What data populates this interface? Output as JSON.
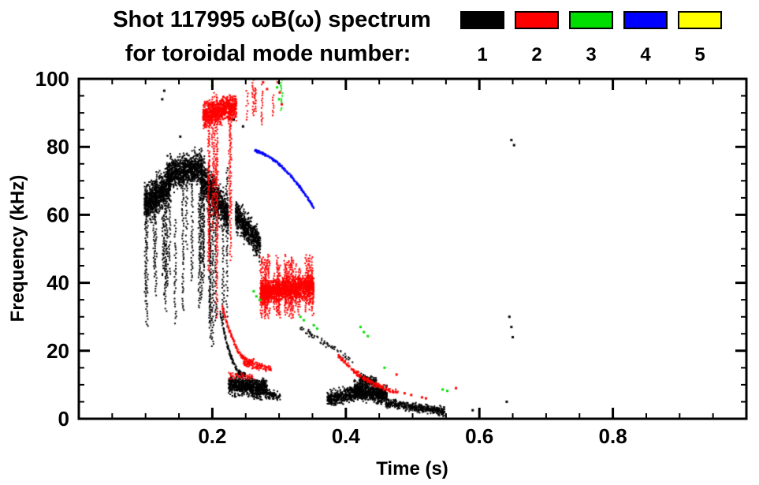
{
  "title": {
    "line1": "Shot 117995 ωB(ω) spectrum",
    "line2": "for toroidal mode number:"
  },
  "legend": {
    "position": "top-right",
    "entries": [
      {
        "label": "1",
        "color": "#000000"
      },
      {
        "label": "2",
        "color": "#ff0000"
      },
      {
        "label": "3",
        "color": "#00dd00"
      },
      {
        "label": "4",
        "color": "#0000ff"
      },
      {
        "label": "5",
        "color": "#ffff00"
      }
    ]
  },
  "chart_data": {
    "type": "scatter",
    "title": "Shot 117995 ωB(ω) spectrum for toroidal mode number: 1-5",
    "xlabel": "Time (s)",
    "ylabel": "Frequency (kHz)",
    "xlim": [
      0.0,
      1.0
    ],
    "ylim": [
      0,
      100
    ],
    "xticks": [
      0.2,
      0.4,
      0.6,
      0.8
    ],
    "yticks": [
      0,
      20,
      40,
      60,
      80,
      100
    ],
    "x_minor_step": 0.05,
    "y_minor_step": 5,
    "grid": false,
    "legend_position": "top-right",
    "series": [
      {
        "name": "n=1",
        "mode": 1,
        "color": "#000000",
        "clusters": [
          {
            "type": "blob",
            "t": [
              0.098,
              0.138
            ],
            "f": [
              63,
              69
            ],
            "spread": 7.5,
            "n": 800
          },
          {
            "type": "blob",
            "t": [
              0.132,
              0.185
            ],
            "f": [
              72,
              74
            ],
            "spread": 6.5,
            "n": 900
          },
          {
            "type": "blob",
            "t": [
              0.183,
              0.224
            ],
            "f": [
              71,
              60
            ],
            "spread": 8,
            "n": 700
          },
          {
            "type": "blob",
            "t": [
              0.235,
              0.272
            ],
            "f": [
              60,
              51
            ],
            "spread": 6,
            "n": 600
          },
          {
            "type": "vstreaks",
            "t": [
              0.1,
              0.148
            ],
            "ftop": [
              58,
              72
            ],
            "fbot": [
              24,
              46
            ],
            "k": 10
          },
          {
            "type": "vstreaks",
            "t": [
              0.15,
              0.196
            ],
            "ftop": [
              64,
              78
            ],
            "fbot": [
              30,
              52
            ],
            "k": 8
          },
          {
            "type": "vstreaks",
            "t": [
              0.196,
              0.226
            ],
            "ftop": [
              58,
              74
            ],
            "fbot": [
              21,
              30
            ],
            "k": 6
          },
          {
            "type": "curve",
            "from": [
              0.212,
              31
            ],
            "to": [
              0.249,
              13
            ],
            "bend": -5,
            "jitter": 1.2,
            "n": 130
          },
          {
            "type": "blob",
            "t": [
              0.224,
              0.282
            ],
            "f": [
              10,
              8.5
            ],
            "spread": 4.2,
            "n": 750
          },
          {
            "type": "blob",
            "t": [
              0.282,
              0.302
            ],
            "f": [
              7.5,
              6.5
            ],
            "spread": 2,
            "n": 80
          },
          {
            "type": "blob",
            "t": [
              0.33,
              0.41
            ],
            "f": [
              27,
              17
            ],
            "spread": 1.6,
            "n": 60
          },
          {
            "type": "blob",
            "t": [
              0.372,
              0.425
            ],
            "f": [
              5.5,
              8.5
            ],
            "spread": 3.2,
            "n": 450
          },
          {
            "type": "blob",
            "t": [
              0.412,
              0.462
            ],
            "f": [
              8.5,
              7
            ],
            "spread": 3.8,
            "n": 650
          },
          {
            "type": "blob",
            "t": [
              0.42,
              0.446
            ],
            "f": [
              12,
              10.5
            ],
            "spread": 2,
            "n": 160
          },
          {
            "type": "blob",
            "t": [
              0.46,
              0.548
            ],
            "f": [
              4.5,
              2.2
            ],
            "spread": 1.8,
            "n": 420
          },
          {
            "type": "points",
            "pts": [
              [
                0.125,
                94
              ],
              [
                0.128,
                96.5
              ],
              [
                0.152,
                83
              ],
              [
                0.232,
                88
              ],
              [
                0.246,
                86
              ],
              [
                0.59,
                2.5
              ],
              [
                0.648,
                82
              ],
              [
                0.652,
                80.5
              ],
              [
                0.645,
                30
              ],
              [
                0.648,
                27
              ],
              [
                0.65,
                24
              ],
              [
                0.641,
                5
              ]
            ]
          }
        ]
      },
      {
        "name": "n=2",
        "mode": 2,
        "color": "#ff0000",
        "clusters": [
          {
            "type": "blob",
            "t": [
              0.186,
              0.236
            ],
            "f": [
              89,
              92
            ],
            "spread": 5,
            "n": 850
          },
          {
            "type": "vstreaks",
            "t": [
              0.192,
              0.234
            ],
            "ftop": [
              84,
              97
            ],
            "fbot": [
              34,
              66
            ],
            "k": 7
          },
          {
            "type": "vstreaks",
            "t": [
              0.204,
              0.214
            ],
            "ftop": [
              80,
              85
            ],
            "fbot": [
              27,
              30
            ],
            "k": 1
          },
          {
            "type": "vstreaks",
            "t": [
              0.244,
              0.292
            ],
            "ftop": [
              95,
              100
            ],
            "fbot": [
              84,
              91
            ],
            "k": 6
          },
          {
            "type": "points",
            "pts": [
              [
                0.298,
                99
              ],
              [
                0.301,
                96
              ],
              [
                0.304,
                92.5
              ],
              [
                0.276,
                99
              ],
              [
                0.282,
                97
              ]
            ]
          },
          {
            "type": "blob",
            "t": [
              0.272,
              0.352
            ],
            "f": [
              37,
              39
            ],
            "spread": 4.6,
            "n": 1400
          },
          {
            "type": "vstreaks",
            "t": [
              0.272,
              0.352
            ],
            "ftop": [
              42,
              49
            ],
            "fbot": [
              29,
              33
            ],
            "k": 34
          },
          {
            "type": "curve",
            "from": [
              0.215,
              33
            ],
            "to": [
              0.263,
              17
            ],
            "bend": -5,
            "jitter": 1.0,
            "n": 140
          },
          {
            "type": "blob",
            "t": [
              0.246,
              0.288
            ],
            "f": [
              16.5,
              14.5
            ],
            "spread": 1.6,
            "n": 110
          },
          {
            "type": "blob",
            "t": [
              0.222,
              0.262
            ],
            "f": [
              13,
              12
            ],
            "spread": 1.4,
            "n": 45
          },
          {
            "type": "curve",
            "from": [
              0.388,
              18.5
            ],
            "to": [
              0.478,
              8
            ],
            "bend": -2,
            "jitter": 1.1,
            "n": 170
          },
          {
            "type": "points",
            "pts": [
              [
                0.488,
                7.5
              ],
              [
                0.498,
                7
              ],
              [
                0.514,
                6.3
              ],
              [
                0.52,
                6
              ],
              [
                0.565,
                9
              ],
              [
                0.476,
                13
              ]
            ]
          }
        ]
      },
      {
        "name": "n=3",
        "mode": 3,
        "color": "#00dd00",
        "clusters": [
          {
            "type": "points",
            "pts": [
              [
                0.196,
                100
              ],
              [
                0.2,
                98
              ],
              [
                0.262,
                37.5
              ],
              [
                0.266,
                36
              ],
              [
                0.271,
                35
              ],
              [
                0.297,
                97.5
              ],
              [
                0.3,
                94
              ],
              [
                0.332,
                30
              ],
              [
                0.337,
                29
              ],
              [
                0.352,
                27.5
              ],
              [
                0.357,
                26.5
              ],
              [
                0.422,
                27
              ],
              [
                0.427,
                25.5
              ],
              [
                0.433,
                24.3
              ],
              [
                0.458,
                15
              ],
              [
                0.545,
                8.6
              ],
              [
                0.552,
                8.2
              ]
            ]
          },
          {
            "type": "vstreaks",
            "t": [
              0.299,
              0.304
            ],
            "ftop": [
              99,
              100
            ],
            "fbot": [
              90,
              93
            ],
            "k": 1
          }
        ]
      },
      {
        "name": "n=4",
        "mode": 4,
        "color": "#0000ff",
        "clusters": [
          {
            "type": "curve",
            "from": [
              0.263,
              79
            ],
            "to": [
              0.352,
              62
            ],
            "bend": 3,
            "jitter": 0.6,
            "n": 230
          }
        ]
      },
      {
        "name": "n=5",
        "mode": 5,
        "color": "#ffff00",
        "clusters": []
      }
    ]
  }
}
